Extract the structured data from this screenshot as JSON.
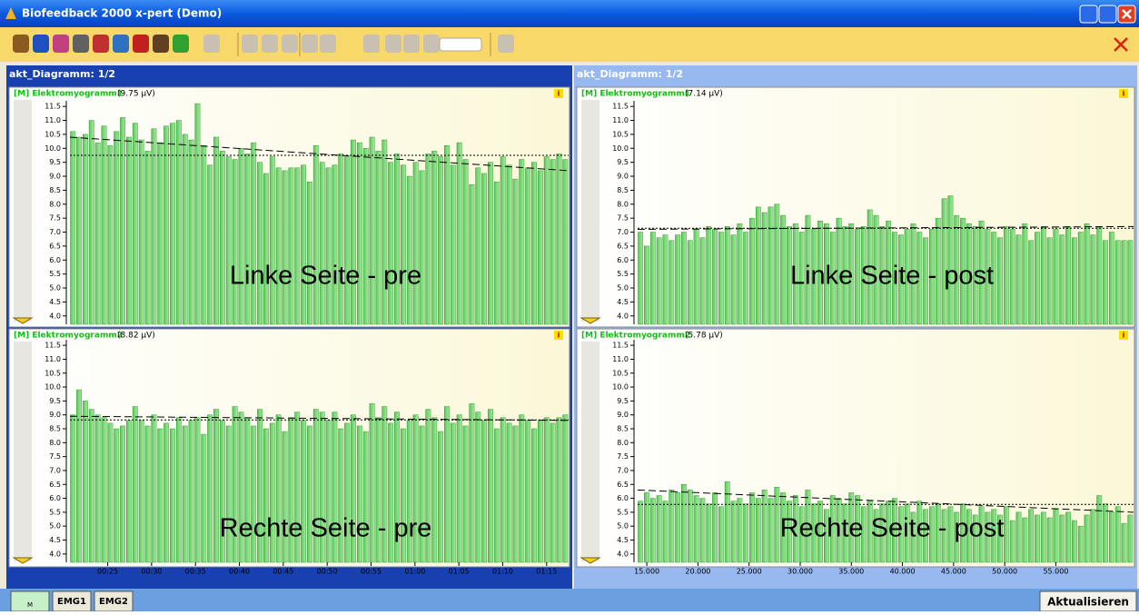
{
  "window": {
    "title": "Biofeedback 2000 x-pert (Demo)"
  },
  "yaxis": {
    "ylim": [
      3.7,
      11.7
    ],
    "yticks": [
      {
        "value": 4,
        "label": "4.0"
      },
      {
        "value": 4.5,
        "label": "4.5"
      },
      {
        "value": 5,
        "label": "5.0"
      },
      {
        "value": 5.5,
        "label": "5.5"
      },
      {
        "value": 6,
        "label": "6.0"
      },
      {
        "value": 6.5,
        "label": "6.5"
      },
      {
        "value": 7,
        "label": "7.0"
      },
      {
        "value": 7.5,
        "label": "7.5"
      },
      {
        "value": 8,
        "label": "8.0"
      },
      {
        "value": 8.5,
        "label": "8.5"
      },
      {
        "value": 9,
        "label": "9.0"
      },
      {
        "value": 9.5,
        "label": "9.5"
      },
      {
        "value": 10,
        "label": "10.0"
      },
      {
        "value": 10.5,
        "label": "10.5"
      },
      {
        "value": 11,
        "label": "11.0"
      },
      {
        "value": 11.5,
        "label": "11.5"
      }
    ]
  },
  "panels": [
    {
      "header": "akt_Diagramm: 1/2",
      "charts": [
        {
          "type": "bar",
          "label": "[M] Elektromyogramm1",
          "mean": 9.75,
          "mean_label": "(9.75 µV)",
          "overlay": "Linke Seite - pre",
          "trend": [
            10.4,
            9.2
          ],
          "values": [
            10.6,
            10.4,
            10.5,
            11.0,
            10.2,
            10.8,
            10.1,
            10.6,
            11.1,
            10.4,
            10.9,
            10.3,
            9.9,
            10.7,
            10.2,
            10.8,
            10.9,
            11.0,
            10.5,
            10.3,
            11.6,
            10.1,
            9.4,
            10.4,
            9.9,
            9.7,
            9.6,
            10.0,
            9.8,
            10.2,
            9.5,
            9.1,
            9.7,
            9.3,
            9.2,
            9.3,
            9.3,
            9.4,
            8.8,
            10.1,
            9.5,
            9.3,
            9.4,
            9.8,
            9.7,
            10.3,
            10.2,
            10.0,
            10.4,
            9.9,
            10.3,
            9.5,
            9.8,
            9.4,
            9.0,
            9.5,
            9.2,
            9.8,
            9.9,
            9.7,
            10.1,
            9.4,
            10.2,
            9.6,
            8.7,
            9.3,
            9.1,
            9.5,
            8.8,
            9.7,
            9.4,
            8.9,
            9.6,
            9.3,
            9.5,
            9.2,
            9.7,
            9.6,
            9.8,
            9.6
          ]
        },
        {
          "type": "bar",
          "label": "[M] Elektromyogramm2",
          "mean": 8.82,
          "mean_label": "(8.82 µV)",
          "overlay": "Rechte Seite - pre",
          "trend": [
            8.95,
            8.8
          ],
          "values": [
            9.0,
            9.9,
            9.5,
            9.2,
            9.0,
            8.9,
            8.7,
            8.5,
            8.6,
            8.8,
            9.3,
            8.8,
            8.6,
            9.0,
            8.5,
            8.7,
            8.5,
            8.9,
            8.6,
            8.8,
            8.9,
            8.3,
            9.0,
            9.2,
            8.8,
            8.6,
            9.3,
            9.1,
            8.9,
            8.6,
            9.2,
            8.5,
            8.7,
            9.0,
            8.4,
            8.9,
            9.1,
            8.8,
            8.6,
            9.2,
            9.1,
            8.8,
            9.1,
            8.5,
            8.7,
            9.0,
            8.6,
            8.4,
            9.4,
            8.9,
            9.3,
            8.7,
            9.1,
            8.5,
            8.8,
            9.0,
            8.6,
            9.2,
            8.9,
            8.4,
            9.3,
            8.7,
            9.0,
            8.6,
            9.4,
            9.1,
            8.8,
            9.2,
            8.5,
            8.9,
            8.7,
            8.6,
            9.0,
            8.8,
            8.5,
            8.8,
            8.9,
            8.7,
            8.9,
            9.0
          ],
          "xlim": [
            20.7,
            77.5
          ],
          "xticks": [
            {
              "value": 25,
              "label": "00:25"
            },
            {
              "value": 30,
              "label": "00:30"
            },
            {
              "value": 35,
              "label": "00:35"
            },
            {
              "value": 40,
              "label": "00:40"
            },
            {
              "value": 45,
              "label": "00:45"
            },
            {
              "value": 50,
              "label": "00:50"
            },
            {
              "value": 55,
              "label": "00:55"
            },
            {
              "value": 60,
              "label": "01:00"
            },
            {
              "value": 65,
              "label": "01:05"
            },
            {
              "value": 70,
              "label": "01:10"
            },
            {
              "value": 75,
              "label": "01:15"
            }
          ]
        }
      ]
    },
    {
      "header": "akt_Diagramm: 1/2",
      "charts": [
        {
          "type": "bar",
          "label": "[M] Elektromyogramm1",
          "mean": 7.14,
          "mean_label": "(7.14 µV)",
          "overlay": "Linke Seite - post",
          "trend": [
            7.1,
            7.2
          ],
          "values": [
            7.0,
            6.5,
            7.0,
            6.8,
            6.9,
            6.7,
            6.9,
            7.0,
            6.7,
            7.1,
            6.8,
            7.2,
            7.1,
            7.0,
            7.2,
            6.9,
            7.3,
            7.0,
            7.5,
            7.9,
            7.7,
            7.9,
            8.0,
            7.6,
            7.2,
            7.3,
            7.0,
            7.6,
            7.1,
            7.4,
            7.3,
            7.0,
            7.5,
            7.2,
            7.3,
            7.1,
            7.2,
            7.8,
            7.6,
            7.2,
            7.4,
            7.0,
            6.9,
            7.1,
            7.3,
            7.0,
            6.8,
            7.1,
            7.5,
            8.2,
            8.3,
            7.6,
            7.5,
            7.3,
            7.2,
            7.4,
            7.1,
            7.0,
            6.8,
            7.2,
            7.1,
            6.9,
            7.3,
            6.7,
            7.0,
            7.2,
            6.8,
            7.1,
            6.9,
            7.2,
            6.8,
            7.0,
            7.3,
            6.9,
            7.2,
            6.7,
            7.0,
            6.7,
            6.7,
            6.7
          ]
        },
        {
          "type": "bar",
          "label": "[M] Elektromyogramm2",
          "mean": 5.78,
          "mean_label": "(5.78 µV)",
          "overlay": "Rechte Seite - post",
          "trend": [
            6.3,
            5.5
          ],
          "values": [
            5.9,
            6.2,
            6.0,
            6.1,
            5.9,
            6.3,
            6.2,
            6.5,
            6.3,
            6.1,
            6.0,
            5.8,
            6.2,
            5.7,
            6.6,
            5.9,
            6.0,
            5.8,
            6.2,
            6.0,
            6.3,
            6.0,
            6.4,
            6.2,
            5.9,
            6.1,
            5.7,
            6.3,
            5.8,
            5.9,
            5.6,
            6.1,
            6.0,
            5.8,
            6.2,
            6.1,
            5.7,
            5.9,
            5.6,
            5.8,
            5.9,
            6.0,
            5.7,
            5.8,
            5.5,
            5.9,
            5.6,
            5.7,
            5.8,
            5.6,
            5.7,
            5.5,
            5.8,
            5.6,
            5.4,
            5.7,
            5.5,
            5.6,
            5.4,
            5.7,
            5.2,
            5.5,
            5.3,
            5.6,
            5.4,
            5.5,
            5.3,
            5.6,
            5.4,
            5.5,
            5.2,
            5.0,
            5.4,
            5.6,
            6.1,
            5.8,
            5.5,
            5.7,
            5.1,
            5.4
          ],
          "xlim": [
            14.1,
            62.6
          ],
          "xticks": [
            {
              "value": 15,
              "label": "15.000"
            },
            {
              "value": 20,
              "label": "20.000"
            },
            {
              "value": 25,
              "label": "25.000"
            },
            {
              "value": 30,
              "label": "30.000"
            },
            {
              "value": 35,
              "label": "35.000"
            },
            {
              "value": 40,
              "label": "40.000"
            },
            {
              "value": 45,
              "label": "45.000"
            },
            {
              "value": 50,
              "label": "50.000"
            },
            {
              "value": 55,
              "label": "55.000"
            }
          ]
        }
      ]
    }
  ],
  "tabs": [
    "M",
    "EMG1",
    "EMG2"
  ],
  "button": "Aktualisieren"
}
